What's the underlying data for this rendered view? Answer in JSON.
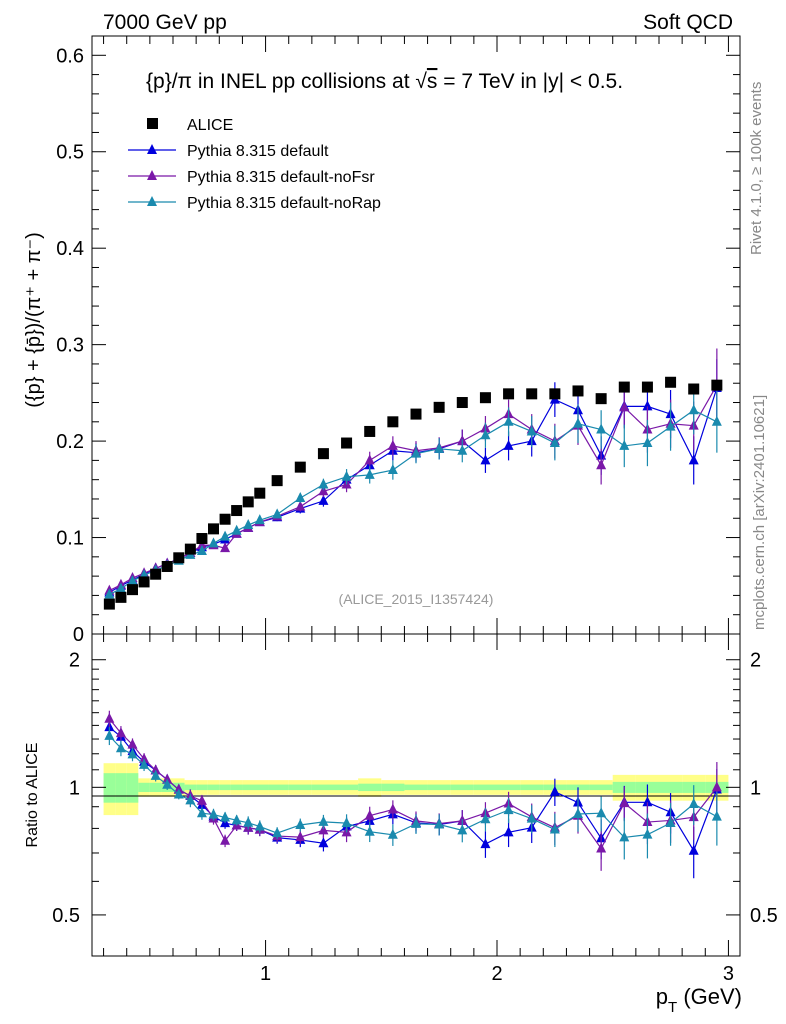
{
  "header": {
    "left": "7000 GeV pp",
    "right": "Soft QCD"
  },
  "side_labels": {
    "rivet": "Rivet 4.1.0, ≥ 100k events",
    "mcplots": "mcplots.cern.ch [arXiv:2401.10621]"
  },
  "main_plot": {
    "title_part1": "{p}/π in INEL pp collisions at ",
    "title_sqrt": "√",
    "title_s": "s",
    "title_part2": " =  7 TeV in |y| < 0.5.",
    "ylabel": "({p} + {p̄})/(π⁺ + π⁻)",
    "watermark": "(ALICE_2015_I1357424)",
    "y_ticks": [
      "0",
      "0.1",
      "0.2",
      "0.3",
      "0.4",
      "0.5",
      "0.6"
    ]
  },
  "ratio_plot": {
    "ylabel": "Ratio to ALICE",
    "y_ticks": [
      "0.5",
      "1",
      "2"
    ]
  },
  "x_axis": {
    "label_main": "p",
    "label_sub": "T",
    "label_unit": " (GeV)",
    "ticks": [
      "1",
      "2",
      "3"
    ]
  },
  "legend": [
    {
      "label": "ALICE",
      "color": "#000000",
      "marker": "square"
    },
    {
      "label": "Pythia 8.315 default",
      "color": "#0000dd",
      "marker": "triangle"
    },
    {
      "label": "Pythia 8.315 default-noFsr",
      "color": "#7a18a8",
      "marker": "triangle"
    },
    {
      "label": "Pythia 8.315 default-noRap",
      "color": "#1a8aae",
      "marker": "triangle"
    }
  ],
  "chart_data": {
    "type": "scatter",
    "title": "{p}/π in INEL pp collisions at √s = 7 TeV in |y| < 0.5.",
    "xlabel": "p_T (GeV)",
    "ylabel": "(p + pbar)/(pi+ + pi-)",
    "xlim": [
      0.25,
      3.05
    ],
    "ylim": [
      0,
      0.62
    ],
    "ratio_ylim": [
      0.4,
      2.3
    ],
    "ratio_yscale": "log",
    "x": [
      0.325,
      0.375,
      0.425,
      0.475,
      0.525,
      0.575,
      0.625,
      0.675,
      0.725,
      0.775,
      0.825,
      0.875,
      0.925,
      0.975,
      1.05,
      1.15,
      1.25,
      1.35,
      1.45,
      1.55,
      1.65,
      1.75,
      1.85,
      1.95,
      2.05,
      2.15,
      2.25,
      2.35,
      2.45,
      2.55,
      2.65,
      2.75,
      2.85,
      2.95
    ],
    "alice": [
      0.031,
      0.038,
      0.046,
      0.054,
      0.062,
      0.07,
      0.079,
      0.088,
      0.099,
      0.109,
      0.119,
      0.128,
      0.137,
      0.146,
      0.159,
      0.173,
      0.187,
      0.198,
      0.21,
      0.22,
      0.228,
      0.235,
      0.24,
      0.245,
      0.249,
      0.249,
      0.249,
      0.252,
      0.244,
      0.256,
      0.256,
      0.261,
      0.254,
      0.258
    ],
    "alice_band_inner": [
      0.08,
      0.08,
      0.08,
      0.025,
      0.025,
      0.025,
      0.025,
      0.015,
      0.015,
      0.015,
      0.015,
      0.015,
      0.015,
      0.015,
      0.015,
      0.015,
      0.015,
      0.015,
      0.02,
      0.02,
      0.015,
      0.015,
      0.015,
      0.015,
      0.015,
      0.015,
      0.015,
      0.015,
      0.015,
      0.03,
      0.03,
      0.03,
      0.03,
      0.03
    ],
    "alice_band_outer": [
      0.14,
      0.14,
      0.14,
      0.05,
      0.05,
      0.05,
      0.05,
      0.04,
      0.04,
      0.04,
      0.04,
      0.04,
      0.04,
      0.04,
      0.04,
      0.04,
      0.04,
      0.04,
      0.05,
      0.04,
      0.04,
      0.04,
      0.04,
      0.04,
      0.04,
      0.04,
      0.04,
      0.04,
      0.04,
      0.07,
      0.07,
      0.07,
      0.07,
      0.07
    ],
    "series": [
      {
        "name": "Pythia 8.315 default",
        "color": "#0000dd",
        "values": [
          0.043,
          0.05,
          0.056,
          0.062,
          0.068,
          0.073,
          0.078,
          0.084,
          0.09,
          0.093,
          0.098,
          0.104,
          0.11,
          0.116,
          0.121,
          0.13,
          0.138,
          0.16,
          0.175,
          0.19,
          0.188,
          0.192,
          0.2,
          0.18,
          0.195,
          0.2,
          0.243,
          0.232,
          0.185,
          0.236,
          0.236,
          0.228,
          0.18,
          0.255
        ],
        "errors": [
          0.002,
          0.002,
          0.002,
          0.002,
          0.002,
          0.002,
          0.002,
          0.003,
          0.003,
          0.003,
          0.003,
          0.003,
          0.004,
          0.004,
          0.004,
          0.005,
          0.006,
          0.008,
          0.009,
          0.01,
          0.01,
          0.011,
          0.012,
          0.013,
          0.015,
          0.016,
          0.018,
          0.02,
          0.02,
          0.022,
          0.024,
          0.025,
          0.025,
          0.03
        ]
      },
      {
        "name": "Pythia 8.315 default-noFsr",
        "color": "#7a18a8",
        "values": [
          0.045,
          0.051,
          0.058,
          0.063,
          0.068,
          0.073,
          0.078,
          0.084,
          0.092,
          0.092,
          0.089,
          0.104,
          0.11,
          0.116,
          0.122,
          0.132,
          0.148,
          0.155,
          0.18,
          0.195,
          0.19,
          0.193,
          0.2,
          0.213,
          0.228,
          0.212,
          0.2,
          0.216,
          0.175,
          0.235,
          0.212,
          0.218,
          0.216,
          0.258
        ],
        "errors": [
          0.002,
          0.002,
          0.002,
          0.002,
          0.002,
          0.002,
          0.002,
          0.003,
          0.003,
          0.003,
          0.003,
          0.003,
          0.004,
          0.004,
          0.004,
          0.005,
          0.006,
          0.008,
          0.009,
          0.01,
          0.01,
          0.011,
          0.012,
          0.013,
          0.015,
          0.016,
          0.018,
          0.02,
          0.02,
          0.022,
          0.024,
          0.025,
          0.025,
          0.038
        ]
      },
      {
        "name": "Pythia 8.315 default-noRap",
        "color": "#1a8aae",
        "values": [
          0.041,
          0.047,
          0.055,
          0.061,
          0.066,
          0.071,
          0.076,
          0.082,
          0.086,
          0.094,
          0.101,
          0.107,
          0.113,
          0.118,
          0.124,
          0.141,
          0.155,
          0.163,
          0.165,
          0.17,
          0.187,
          0.192,
          0.19,
          0.206,
          0.22,
          0.21,
          0.198,
          0.218,
          0.212,
          0.195,
          0.198,
          0.215,
          0.232,
          0.22
        ],
        "errors": [
          0.002,
          0.002,
          0.002,
          0.002,
          0.002,
          0.002,
          0.002,
          0.003,
          0.003,
          0.003,
          0.003,
          0.003,
          0.004,
          0.004,
          0.004,
          0.005,
          0.006,
          0.008,
          0.009,
          0.01,
          0.01,
          0.011,
          0.012,
          0.013,
          0.015,
          0.016,
          0.018,
          0.02,
          0.02,
          0.022,
          0.024,
          0.025,
          0.025,
          0.032
        ]
      }
    ]
  }
}
